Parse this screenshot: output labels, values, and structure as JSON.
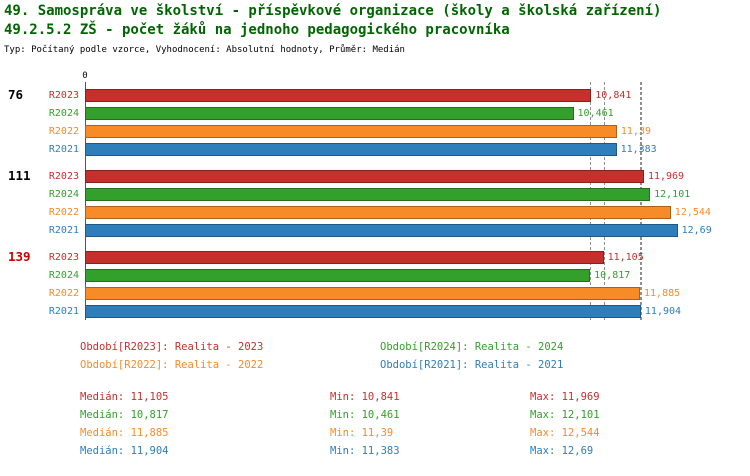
{
  "page": {
    "title1": "49. Samospráva ve školství - příspěvkové organizace (školy a školská zařízení)",
    "title2": "49.2.5.2 ZŠ - počet žáků na jednoho pedagogického pracovníka",
    "subtitle": "Typ: Počítaný podle vzorce, Vyhodnocení: Absolutní hodnoty, Průměr: Medián"
  },
  "colors": {
    "title": "#006400",
    "R2023": "#c5302c",
    "R2024": "#33a02c",
    "R2022": "#f68b28",
    "R2021": "#2e7ebc"
  },
  "axis": {
    "zero_label": "0",
    "value_axis_start": 0
  },
  "chart_data": {
    "type": "bar",
    "orientation": "horizontal",
    "series_order": [
      "R2023",
      "R2024",
      "R2022",
      "R2021"
    ],
    "groups": [
      {
        "id": "76",
        "id_color": "#000000",
        "bars": [
          {
            "series": "R2023",
            "value": 10.841,
            "label": "10,841"
          },
          {
            "series": "R2024",
            "value": 10.461,
            "label": "10,461"
          },
          {
            "series": "R2022",
            "value": 11.39,
            "label": "11,39"
          },
          {
            "series": "R2021",
            "value": 11.383,
            "label": "11,383"
          }
        ]
      },
      {
        "id": "111",
        "id_color": "#000000",
        "bars": [
          {
            "series": "R2023",
            "value": 11.969,
            "label": "11,969"
          },
          {
            "series": "R2024",
            "value": 12.101,
            "label": "12,101"
          },
          {
            "series": "R2022",
            "value": 12.544,
            "label": "12,544"
          },
          {
            "series": "R2021",
            "value": 12.69,
            "label": "12,69"
          }
        ]
      },
      {
        "id": "139",
        "id_color": "#cc0000",
        "bars": [
          {
            "series": "R2023",
            "value": 11.105,
            "label": "11,105"
          },
          {
            "series": "R2024",
            "value": 10.817,
            "label": "10,817"
          },
          {
            "series": "R2022",
            "value": 11.885,
            "label": "11,885"
          },
          {
            "series": "R2021",
            "value": 11.904,
            "label": "11,904"
          }
        ]
      }
    ],
    "medians": [
      {
        "series": "R2023",
        "value": 11.105
      },
      {
        "series": "R2024",
        "value": 10.817
      },
      {
        "series": "R2022",
        "value": 11.885
      },
      {
        "series": "R2021",
        "value": 11.904
      }
    ]
  },
  "legend": [
    {
      "series": "R2023",
      "text": "Období[R2023]: Realita - 2023"
    },
    {
      "series": "R2024",
      "text": "Období[R2024]: Realita - 2024"
    },
    {
      "series": "R2022",
      "text": "Období[R2022]: Realita - 2022"
    },
    {
      "series": "R2021",
      "text": "Období[R2021]: Realita - 2021"
    }
  ],
  "stats": [
    {
      "series": "R2023",
      "median": "Medián: 11,105",
      "min": "Min: 10,841",
      "max": "Max: 11,969"
    },
    {
      "series": "R2024",
      "median": "Medián: 10,817",
      "min": "Min: 10,461",
      "max": "Max: 12,101"
    },
    {
      "series": "R2022",
      "median": "Medián: 11,885",
      "min": "Min: 11,39",
      "max": "Max: 12,544"
    },
    {
      "series": "R2021",
      "median": "Medián: 11,904",
      "min": "Min: 11,383",
      "max": "Max: 12,69"
    }
  ]
}
